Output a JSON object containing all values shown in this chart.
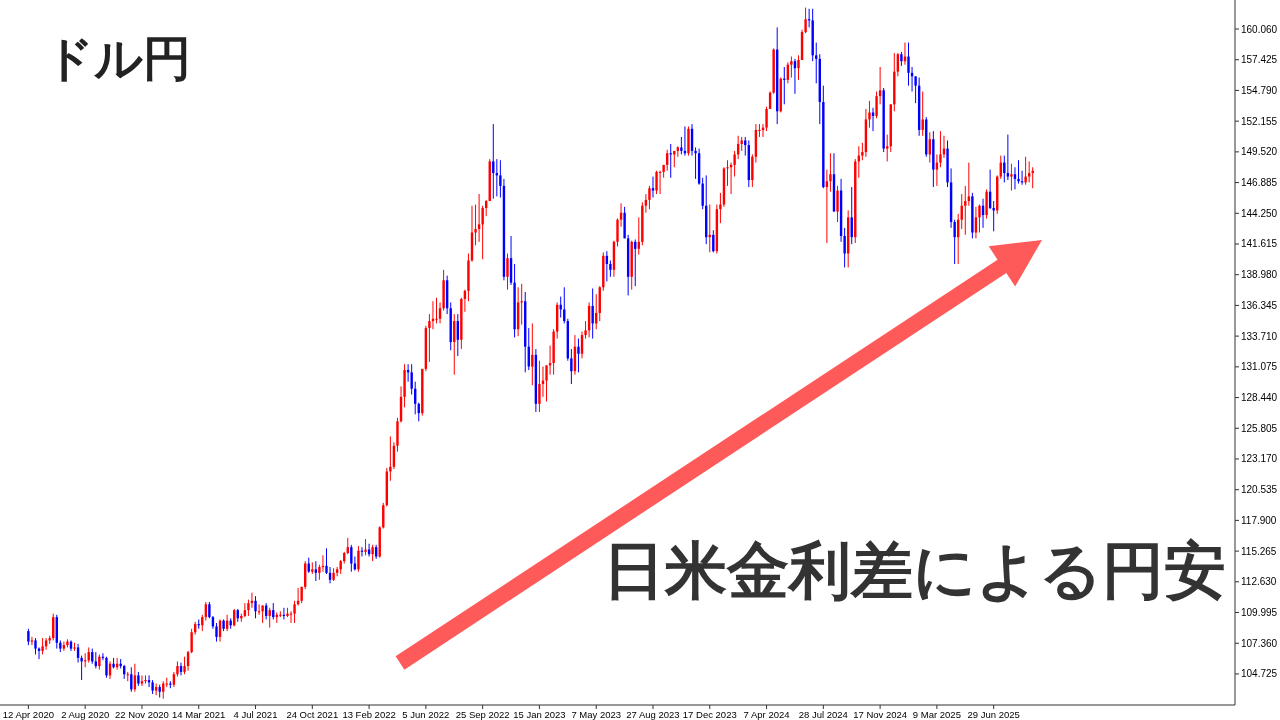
{
  "chart_data": {
    "type": "candlestick",
    "title": "ドル円",
    "annotations": [
      "日米金利差による円安"
    ],
    "colors": [
      "#0000ff",
      "#ff0000",
      "#0000ff",
      "#0000ff",
      "#ff0000",
      "#ff0000",
      "#ff0000",
      "#ff0000",
      "#0000ff",
      "#0000ff",
      "#ff0000",
      "#ff0000",
      "#0000ff",
      "#ff0000",
      "#0000ff",
      "#0000ff",
      "#ff0000",
      "#ff0000",
      "#0000ff",
      "#0000ff",
      "#ff0000",
      "#0000ff",
      "#0000ff",
      "#ff0000",
      "#0000ff",
      "#ff0000",
      "#0000ff",
      "#0000ff",
      "#ff0000",
      "#0000ff",
      "#ff0000",
      "#0000ff",
      "#ff0000",
      "#ff0000",
      "#0000ff",
      "#0000ff",
      "#ff0000",
      "#0000ff",
      "#ff0000",
      "#ff0000",
      "#0000ff",
      "#ff0000",
      "#ff0000",
      "#0000ff",
      "#ff0000",
      "#ff0000",
      "#ff0000",
      "#ff0000",
      "#0000ff",
      "#ff0000",
      "#ff0000",
      "#0000ff",
      "#0000ff",
      "#0000ff",
      "#ff0000",
      "#0000ff",
      "#ff0000",
      "#0000ff",
      "#ff0000",
      "#0000ff",
      "#ff0000",
      "#ff0000",
      "#ff0000",
      "#ff0000",
      "#0000ff",
      "#ff0000",
      "#ff0000",
      "#0000ff",
      "#ff0000",
      "#0000ff",
      "#ff0000",
      "#ff0000",
      "#0000ff",
      "#ff0000",
      "#ff0000",
      "#ff0000",
      "#ff0000",
      "#ff0000",
      "#ff0000",
      "#0000ff",
      "#ff0000",
      "#0000ff",
      "#ff0000",
      "#ff0000",
      "#0000ff",
      "#0000ff",
      "#ff0000",
      "#ff0000",
      "#ff0000",
      "#ff0000",
      "#ff0000",
      "#0000ff",
      "#0000ff",
      "#ff0000",
      "#0000ff",
      "#ff0000",
      "#0000ff",
      "#ff0000",
      "#0000ff",
      "#ff0000",
      "#ff0000",
      "#ff0000",
      "#ff0000",
      "#ff0000",
      "#ff0000",
      "#ff0000",
      "#ff0000",
      "#0000ff",
      "#0000ff",
      "#0000ff",
      "#0000ff",
      "#ff0000",
      "#ff0000",
      "#ff0000",
      "#ff0000",
      "#ff0000",
      "#ff0000",
      "#ff0000",
      "#0000ff",
      "#0000ff",
      "#ff0000",
      "#0000ff",
      "#ff0000",
      "#ff0000",
      "#ff0000",
      "#ff0000",
      "#ff0000",
      "#ff0000",
      "#ff0000",
      "#ff0000",
      "#ff0000",
      "#0000ff",
      "#0000ff",
      "#0000ff",
      "#0000ff",
      "#ff0000",
      "#0000ff",
      "#0000ff",
      "#ff0000",
      "#ff0000",
      "#0000ff",
      "#0000ff",
      "#ff0000",
      "#0000ff",
      "#ff0000",
      "#ff0000",
      "#ff0000",
      "#ff0000",
      "#ff0000",
      "#ff0000",
      "#0000ff",
      "#0000ff",
      "#0000ff",
      "#0000ff",
      "#ff0000",
      "#0000ff",
      "#ff0000",
      "#ff0000",
      "#ff0000",
      "#0000ff",
      "#ff0000",
      "#ff0000",
      "#ff0000",
      "#0000ff",
      "#0000ff",
      "#ff0000",
      "#ff0000",
      "#ff0000",
      "#0000ff",
      "#0000ff",
      "#ff0000",
      "#0000ff",
      "#ff0000",
      "#ff0000",
      "#ff0000",
      "#ff0000",
      "#0000ff",
      "#ff0000",
      "#ff0000",
      "#ff0000",
      "#ff0000",
      "#0000ff",
      "#ff0000",
      "#ff0000",
      "#0000ff",
      "#0000ff",
      "#ff0000",
      "#0000ff",
      "#0000ff",
      "#0000ff",
      "#0000ff",
      "#0000ff",
      "#ff0000",
      "#0000ff",
      "#ff0000",
      "#ff0000",
      "#ff0000",
      "#ff0000",
      "#ff0000",
      "#ff0000",
      "#ff0000",
      "#ff0000",
      "#0000ff",
      "#0000ff",
      "#ff0000",
      "#ff0000",
      "#ff0000",
      "#ff0000",
      "#ff0000",
      "#ff0000",
      "#ff0000",
      "#0000ff",
      "#ff0000",
      "#0000ff",
      "#ff0000",
      "#ff0000",
      "#0000ff",
      "#ff0000",
      "#ff0000",
      "#ff0000",
      "#0000ff",
      "#0000ff",
      "#0000ff",
      "#0000ff",
      "#0000ff",
      "#ff0000",
      "#ff0000",
      "#0000ff",
      "#ff0000",
      "#0000ff",
      "#0000ff",
      "#ff0000",
      "#0000ff",
      "#ff0000",
      "#ff0000",
      "#ff0000",
      "#ff0000",
      "#ff0000",
      "#0000ff",
      "#ff0000",
      "#ff0000",
      "#0000ff",
      "#ff0000",
      "#ff0000",
      "#ff0000",
      "#ff0000",
      "#0000ff",
      "#ff0000",
      "#0000ff",
      "#0000ff",
      "#0000ff",
      "#0000ff",
      "#ff0000",
      "#0000ff",
      "#ff0000",
      "#0000ff",
      "#ff0000",
      "#ff0000",
      "#ff0000",
      "#0000ff",
      "#0000ff",
      "#0000ff",
      "#ff0000",
      "#ff0000",
      "#ff0000",
      "#ff0000",
      "#0000ff",
      "#ff0000",
      "#ff0000",
      "#0000ff",
      "#ff0000",
      "#0000ff",
      "#0000ff",
      "#ff0000",
      "#ff0000",
      "#0000ff",
      "#0000ff",
      "#ff0000",
      "#0000ff",
      "#0000ff",
      "#0000ff",
      "#ff0000",
      "#ff0000",
      "#ff0000"
    ],
    "xlim": [
      "2020-02-16",
      "2026-10-18"
    ],
    "ylim": [
      102.06,
      162.55
    ],
    "xticks": [
      {
        "value": "2020-04-12",
        "label": "12 Apr 2020"
      },
      {
        "value": "2020-08-02",
        "label": "2 Aug 2020"
      },
      {
        "value": "2020-11-22",
        "label": "22 Nov 2020"
      },
      {
        "value": "2021-03-14",
        "label": "14 Mar 2021"
      },
      {
        "value": "2021-07-04",
        "label": "4 Jul 2021"
      },
      {
        "value": "2021-10-24",
        "label": "24 Oct 2021"
      },
      {
        "value": "2022-02-13",
        "label": "13 Feb 2022"
      },
      {
        "value": "2022-06-05",
        "label": "5 Jun 2022"
      },
      {
        "value": "2022-09-25",
        "label": "25 Sep 2022"
      },
      {
        "value": "2023-01-15",
        "label": "15 Jan 2023"
      },
      {
        "value": "2023-05-07",
        "label": "7 May 2023"
      },
      {
        "value": "2023-08-27",
        "label": "27 Aug 2023"
      },
      {
        "value": "2023-12-17",
        "label": "17 Dec 2023"
      },
      {
        "value": "2024-04-07",
        "label": "7 Apr 2024"
      },
      {
        "value": "2024-07-28",
        "label": "28 Jul 2024"
      },
      {
        "value": "2024-11-17",
        "label": "17 Nov 2024"
      },
      {
        "value": "2025-03-09",
        "label": "9 Mar 2025"
      },
      {
        "value": "2025-06-29",
        "label": "29 Jun 2025"
      }
    ],
    "yticks": [
      {
        "value": 104.725,
        "label": "104.725"
      },
      {
        "value": 107.36,
        "label": "107.360"
      },
      {
        "value": 109.995,
        "label": "109.995"
      },
      {
        "value": 112.63,
        "label": "112.630"
      },
      {
        "value": 115.265,
        "label": "115.265"
      },
      {
        "value": 117.9,
        "label": "117.900"
      },
      {
        "value": 120.535,
        "label": "120.535"
      },
      {
        "value": 123.17,
        "label": "123.170"
      },
      {
        "value": 125.805,
        "label": "125.805"
      },
      {
        "value": 128.44,
        "label": "128.440"
      },
      {
        "value": 131.075,
        "label": "131.075"
      },
      {
        "value": 133.71,
        "label": "133.710"
      },
      {
        "value": 136.345,
        "label": "136.345"
      },
      {
        "value": 138.98,
        "label": "138.980"
      },
      {
        "value": 141.615,
        "label": "141.615"
      },
      {
        "value": 144.25,
        "label": "144.250"
      },
      {
        "value": 146.885,
        "label": "146.885"
      },
      {
        "value": 149.52,
        "label": "149.520"
      },
      {
        "value": 152.155,
        "label": "152.155"
      },
      {
        "value": 154.79,
        "label": "154.790"
      },
      {
        "value": 157.425,
        "label": "157.425"
      },
      {
        "value": 160.06,
        "label": "160.060"
      }
    ],
    "x": [
      "2020-04-12",
      "2020-04-19",
      "2020-04-26",
      "2020-05-03",
      "2020-05-10",
      "2020-05-17",
      "2020-05-24",
      "2020-05-31",
      "2020-06-07",
      "2020-06-14",
      "2020-06-21",
      "2020-06-28",
      "2020-07-05",
      "2020-07-12",
      "2020-07-19",
      "2020-07-26",
      "2020-08-02",
      "2020-08-09",
      "2020-08-16",
      "2020-08-23",
      "2020-08-30",
      "2020-09-06",
      "2020-09-13",
      "2020-09-20",
      "2020-09-27",
      "2020-10-04",
      "2020-10-11",
      "2020-10-18",
      "2020-10-25",
      "2020-11-01",
      "2020-11-08",
      "2020-11-15",
      "2020-11-22",
      "2020-11-29",
      "2020-12-06",
      "2020-12-13",
      "2020-12-20",
      "2020-12-27",
      "2021-01-03",
      "2021-01-10",
      "2021-01-17",
      "2021-01-24",
      "2021-01-31",
      "2021-02-07",
      "2021-02-14",
      "2021-02-21",
      "2021-02-28",
      "2021-03-07",
      "2021-03-14",
      "2021-03-21",
      "2021-03-28",
      "2021-04-04",
      "2021-04-11",
      "2021-04-18",
      "2021-04-25",
      "2021-05-02",
      "2021-05-09",
      "2021-05-16",
      "2021-05-23",
      "2021-05-30",
      "2021-06-06",
      "2021-06-13",
      "2021-06-20",
      "2021-06-27",
      "2021-07-04",
      "2021-07-11",
      "2021-07-18",
      "2021-07-25",
      "2021-08-01",
      "2021-08-08",
      "2021-08-15",
      "2021-08-22",
      "2021-08-29",
      "2021-09-05",
      "2021-09-12",
      "2021-09-19",
      "2021-09-26",
      "2021-10-03",
      "2021-10-10",
      "2021-10-17",
      "2021-10-24",
      "2021-10-31",
      "2021-11-07",
      "2021-11-14",
      "2021-11-21",
      "2021-11-28",
      "2021-12-05",
      "2021-12-12",
      "2021-12-19",
      "2021-12-26",
      "2022-01-02",
      "2022-01-09",
      "2022-01-16",
      "2022-01-23",
      "2022-01-30",
      "2022-02-06",
      "2022-02-13",
      "2022-02-20",
      "2022-02-27",
      "2022-03-06",
      "2022-03-13",
      "2022-03-20",
      "2022-03-27",
      "2022-04-03",
      "2022-04-10",
      "2022-04-17",
      "2022-04-24",
      "2022-05-01",
      "2022-05-08",
      "2022-05-15",
      "2022-05-22",
      "2022-05-29",
      "2022-06-05",
      "2022-06-12",
      "2022-06-19",
      "2022-06-26",
      "2022-07-03",
      "2022-07-10",
      "2022-07-17",
      "2022-07-24",
      "2022-07-31",
      "2022-08-07",
      "2022-08-14",
      "2022-08-21",
      "2022-08-28",
      "2022-09-04",
      "2022-09-11",
      "2022-09-18",
      "2022-09-25",
      "2022-10-02",
      "2022-10-09",
      "2022-10-16",
      "2022-10-23",
      "2022-10-30",
      "2022-11-06",
      "2022-11-13",
      "2022-11-20",
      "2022-11-27",
      "2022-12-04",
      "2022-12-11",
      "2022-12-18",
      "2022-12-25",
      "2023-01-01",
      "2023-01-08",
      "2023-01-15",
      "2023-01-22",
      "2023-01-29",
      "2023-02-05",
      "2023-02-12",
      "2023-02-19",
      "2023-02-26",
      "2023-03-05",
      "2023-03-12",
      "2023-03-19",
      "2023-03-26",
      "2023-04-02",
      "2023-04-09",
      "2023-04-16",
      "2023-04-23",
      "2023-04-30",
      "2023-05-07",
      "2023-05-14",
      "2023-05-21",
      "2023-05-28",
      "2023-06-04",
      "2023-06-11",
      "2023-06-18",
      "2023-06-25",
      "2023-07-02",
      "2023-07-09",
      "2023-07-16",
      "2023-07-23",
      "2023-07-30",
      "2023-08-06",
      "2023-08-13",
      "2023-08-20",
      "2023-08-27",
      "2023-09-03",
      "2023-09-10",
      "2023-09-17",
      "2023-09-24",
      "2023-10-01",
      "2023-10-08",
      "2023-10-15",
      "2023-10-22",
      "2023-10-29",
      "2023-11-05",
      "2023-11-12",
      "2023-11-19",
      "2023-11-26",
      "2023-12-03",
      "2023-12-10",
      "2023-12-17",
      "2023-12-24",
      "2023-12-31",
      "2024-01-07",
      "2024-01-14",
      "2024-01-21",
      "2024-01-28",
      "2024-02-04",
      "2024-02-11",
      "2024-02-18",
      "2024-02-25",
      "2024-03-03",
      "2024-03-10",
      "2024-03-17",
      "2024-03-24",
      "2024-03-31",
      "2024-04-07",
      "2024-04-14",
      "2024-04-21",
      "2024-04-28",
      "2024-05-05",
      "2024-05-12",
      "2024-05-19",
      "2024-05-26",
      "2024-06-02",
      "2024-06-09",
      "2024-06-16",
      "2024-06-23",
      "2024-06-30",
      "2024-07-07",
      "2024-07-14",
      "2024-07-21",
      "2024-07-28",
      "2024-08-04",
      "2024-08-11",
      "2024-08-18",
      "2024-08-25",
      "2024-09-01",
      "2024-09-08",
      "2024-09-15",
      "2024-09-22",
      "2024-09-29",
      "2024-10-06",
      "2024-10-13",
      "2024-10-20",
      "2024-10-27",
      "2024-11-03",
      "2024-11-10",
      "2024-11-17",
      "2024-11-24",
      "2024-12-01",
      "2024-12-08",
      "2024-12-15",
      "2024-12-22",
      "2024-12-29",
      "2025-01-05",
      "2025-01-12",
      "2025-01-19",
      "2025-01-26",
      "2025-02-02",
      "2025-02-09",
      "2025-02-16",
      "2025-02-23",
      "2025-03-02",
      "2025-03-09",
      "2025-03-16",
      "2025-03-23",
      "2025-03-30",
      "2025-04-06",
      "2025-04-13",
      "2025-04-20",
      "2025-04-27",
      "2025-05-04",
      "2025-05-11",
      "2025-05-18",
      "2025-05-25",
      "2025-06-01",
      "2025-06-08",
      "2025-06-15",
      "2025-06-22",
      "2025-06-29",
      "2025-07-06",
      "2025-07-13",
      "2025-07-20",
      "2025-07-27",
      "2025-08-03",
      "2025-08-10",
      "2025-08-17",
      "2025-08-24",
      "2025-08-31",
      "2025-09-07",
      "2025-09-14"
    ],
    "ohlc": [
      [
        108.4,
        108.6,
        107.2,
        107.5
      ],
      [
        107.5,
        107.9,
        107.2,
        107.6
      ],
      [
        107.6,
        107.8,
        106.4,
        106.9
      ],
      [
        106.9,
        107.0,
        106.0,
        106.7
      ],
      [
        106.7,
        107.8,
        106.4,
        107.1
      ],
      [
        107.1,
        107.8,
        106.8,
        107.6
      ],
      [
        107.6,
        108.0,
        107.3,
        107.8
      ],
      [
        107.8,
        109.9,
        107.6,
        109.6
      ],
      [
        109.6,
        109.8,
        106.9,
        107.4
      ],
      [
        107.4,
        107.6,
        106.6,
        106.9
      ],
      [
        106.9,
        107.5,
        106.7,
        107.2
      ],
      [
        107.2,
        107.7,
        107.0,
        107.5
      ],
      [
        107.5,
        107.6,
        106.7,
        106.9
      ],
      [
        106.9,
        107.4,
        106.7,
        107.0
      ],
      [
        107.0,
        107.3,
        105.7,
        106.1
      ],
      [
        106.1,
        106.3,
        104.2,
        105.8
      ],
      [
        105.8,
        106.5,
        105.3,
        105.9
      ],
      [
        105.9,
        107.0,
        105.7,
        106.6
      ],
      [
        106.6,
        106.9,
        105.6,
        105.8
      ],
      [
        105.8,
        106.6,
        105.2,
        105.4
      ],
      [
        105.4,
        106.4,
        105.1,
        106.2
      ],
      [
        106.2,
        106.5,
        105.9,
        106.1
      ],
      [
        106.1,
        106.2,
        104.4,
        104.6
      ],
      [
        104.6,
        105.8,
        104.3,
        105.6
      ],
      [
        105.6,
        106.1,
        105.2,
        105.3
      ],
      [
        105.3,
        106.1,
        105.1,
        105.6
      ],
      [
        105.6,
        106.0,
        105.2,
        105.4
      ],
      [
        105.4,
        105.5,
        104.3,
        104.7
      ],
      [
        104.7,
        104.9,
        104.1,
        104.7
      ],
      [
        104.7,
        105.3,
        103.2,
        103.4
      ],
      [
        103.4,
        105.6,
        103.2,
        104.6
      ],
      [
        104.6,
        104.9,
        103.7,
        103.9
      ],
      [
        103.9,
        104.6,
        103.7,
        104.1
      ],
      [
        104.1,
        104.6,
        103.9,
        104.2
      ],
      [
        104.2,
        104.6,
        103.6,
        104.0
      ],
      [
        104.0,
        104.2,
        103.0,
        103.3
      ],
      [
        103.3,
        103.9,
        102.9,
        103.6
      ],
      [
        103.6,
        103.8,
        102.7,
        103.2
      ],
      [
        103.2,
        104.1,
        102.6,
        103.9
      ],
      [
        103.9,
        104.4,
        103.6,
        103.9
      ],
      [
        103.9,
        104.1,
        103.5,
        103.8
      ],
      [
        103.8,
        104.9,
        103.6,
        104.7
      ],
      [
        104.7,
        105.8,
        104.5,
        105.4
      ],
      [
        105.4,
        105.7,
        104.6,
        104.9
      ],
      [
        104.9,
        106.2,
        104.7,
        105.4
      ],
      [
        105.4,
        106.7,
        105.0,
        106.6
      ],
      [
        106.6,
        108.6,
        106.5,
        108.3
      ],
      [
        108.3,
        109.2,
        108.1,
        109.0
      ],
      [
        109.0,
        109.4,
        108.6,
        108.9
      ],
      [
        108.9,
        109.8,
        108.4,
        109.6
      ],
      [
        109.6,
        110.9,
        109.3,
        110.7
      ],
      [
        110.7,
        110.9,
        109.5,
        109.6
      ],
      [
        109.6,
        109.7,
        108.6,
        108.8
      ],
      [
        108.8,
        109.1,
        107.5,
        107.9
      ],
      [
        107.9,
        109.4,
        107.5,
        109.3
      ],
      [
        109.3,
        109.4,
        108.4,
        108.6
      ],
      [
        108.6,
        109.8,
        108.4,
        109.3
      ],
      [
        109.3,
        109.5,
        108.6,
        108.9
      ],
      [
        108.9,
        110.3,
        108.8,
        110.2
      ],
      [
        110.2,
        110.3,
        109.2,
        109.5
      ],
      [
        109.5,
        109.9,
        109.2,
        109.7
      ],
      [
        109.7,
        110.8,
        109.6,
        110.2
      ],
      [
        110.2,
        111.1,
        109.7,
        110.8
      ],
      [
        110.8,
        111.7,
        110.4,
        111.0
      ],
      [
        111.0,
        111.4,
        109.5,
        110.1
      ],
      [
        110.1,
        110.7,
        109.8,
        110.1
      ],
      [
        110.1,
        110.6,
        109.1,
        110.6
      ],
      [
        110.6,
        110.8,
        109.4,
        109.7
      ],
      [
        109.7,
        110.4,
        108.7,
        110.2
      ],
      [
        110.2,
        110.8,
        109.4,
        109.6
      ],
      [
        109.6,
        110.0,
        109.1,
        109.8
      ],
      [
        109.8,
        110.1,
        109.6,
        109.8
      ],
      [
        109.8,
        110.4,
        109.4,
        109.7
      ],
      [
        109.7,
        110.4,
        109.6,
        109.9
      ],
      [
        109.9,
        110.1,
        109.1,
        109.9
      ],
      [
        109.9,
        111.0,
        109.1,
        110.7
      ],
      [
        110.7,
        112.1,
        110.6,
        111.0
      ],
      [
        111.0,
        112.2,
        110.8,
        112.2
      ],
      [
        112.2,
        114.4,
        112.0,
        114.2
      ],
      [
        114.2,
        114.7,
        113.4,
        113.5
      ],
      [
        113.5,
        114.3,
        113.3,
        113.7
      ],
      [
        113.7,
        114.4,
        112.7,
        113.4
      ],
      [
        113.4,
        114.1,
        112.8,
        113.9
      ],
      [
        113.9,
        114.9,
        113.5,
        114.0
      ],
      [
        114.0,
        115.5,
        113.3,
        113.4
      ],
      [
        113.4,
        113.9,
        112.5,
        112.8
      ],
      [
        112.8,
        113.8,
        112.7,
        113.4
      ],
      [
        113.4,
        113.9,
        113.1,
        113.7
      ],
      [
        113.7,
        114.5,
        113.3,
        114.4
      ],
      [
        114.4,
        115.2,
        114.2,
        115.1
      ],
      [
        115.1,
        116.4,
        115.0,
        115.6
      ],
      [
        115.6,
        115.8,
        113.5,
        114.2
      ],
      [
        114.2,
        114.8,
        113.6,
        113.7
      ],
      [
        113.7,
        115.7,
        113.5,
        115.3
      ],
      [
        115.3,
        115.6,
        114.8,
        115.2
      ],
      [
        115.2,
        116.3,
        114.9,
        115.4
      ],
      [
        115.4,
        115.9,
        114.8,
        115.0
      ],
      [
        115.0,
        115.8,
        114.4,
        115.6
      ],
      [
        115.6,
        115.8,
        114.6,
        114.8
      ],
      [
        114.8,
        117.4,
        114.7,
        117.3
      ],
      [
        117.3,
        119.4,
        117.2,
        119.2
      ],
      [
        119.2,
        122.4,
        119.1,
        122.1
      ],
      [
        122.1,
        125.1,
        121.3,
        122.5
      ],
      [
        122.5,
        124.6,
        122.3,
        124.3
      ],
      [
        124.3,
        126.7,
        123.8,
        126.4
      ],
      [
        126.4,
        129.4,
        126.3,
        128.5
      ],
      [
        128.5,
        131.3,
        127.6,
        130.8
      ],
      [
        130.8,
        131.3,
        129.8,
        130.6
      ],
      [
        130.6,
        131.3,
        128.7,
        129.2
      ],
      [
        129.2,
        129.8,
        127.0,
        127.9
      ],
      [
        127.9,
        128.0,
        126.4,
        127.1
      ],
      [
        127.1,
        130.9,
        126.9,
        130.9
      ],
      [
        130.9,
        134.6,
        130.7,
        134.4
      ],
      [
        134.4,
        135.6,
        131.5,
        135.0
      ],
      [
        135.0,
        136.7,
        134.3,
        135.2
      ],
      [
        135.2,
        137.0,
        134.8,
        135.2
      ],
      [
        135.2,
        136.6,
        134.8,
        136.1
      ],
      [
        136.1,
        139.4,
        135.9,
        138.5
      ],
      [
        138.5,
        138.9,
        135.6,
        136.1
      ],
      [
        136.1,
        136.6,
        132.5,
        133.2
      ],
      [
        133.2,
        135.6,
        130.4,
        135.0
      ],
      [
        135.0,
        135.6,
        132.0,
        133.4
      ],
      [
        133.4,
        137.0,
        132.6,
        136.9
      ],
      [
        136.9,
        137.7,
        135.8,
        137.6
      ],
      [
        137.6,
        140.8,
        136.7,
        140.2
      ],
      [
        140.2,
        144.9,
        140.1,
        142.6
      ],
      [
        142.6,
        145.0,
        141.5,
        142.9
      ],
      [
        142.9,
        145.9,
        141.8,
        143.3
      ],
      [
        143.3,
        144.9,
        140.3,
        144.7
      ],
      [
        144.7,
        145.4,
        144.0,
        145.3
      ],
      [
        145.3,
        148.9,
        145.3,
        148.7
      ],
      [
        148.7,
        151.9,
        145.5,
        147.7
      ],
      [
        147.7,
        148.9,
        145.7,
        147.5
      ],
      [
        147.5,
        148.8,
        145.6,
        146.6
      ],
      [
        146.6,
        147.2,
        138.5,
        138.8
      ],
      [
        138.8,
        140.8,
        137.7,
        140.4
      ],
      [
        140.4,
        142.3,
        138.1,
        138.3
      ],
      [
        138.3,
        139.9,
        133.6,
        134.3
      ],
      [
        134.3,
        137.9,
        133.7,
        136.6
      ],
      [
        136.6,
        138.2,
        134.7,
        136.7
      ],
      [
        136.7,
        137.5,
        130.6,
        132.8
      ],
      [
        132.8,
        134.4,
        130.8,
        131.1
      ],
      [
        131.1,
        134.8,
        129.5,
        132.1
      ],
      [
        132.1,
        132.6,
        127.2,
        127.9
      ],
      [
        127.9,
        131.6,
        127.2,
        129.6
      ],
      [
        129.6,
        131.1,
        128.5,
        129.9
      ],
      [
        129.9,
        131.2,
        128.1,
        131.2
      ],
      [
        131.2,
        132.9,
        130.4,
        131.4
      ],
      [
        131.4,
        134.3,
        130.4,
        134.1
      ],
      [
        134.1,
        136.6,
        133.5,
        136.4
      ],
      [
        136.4,
        137.1,
        135.3,
        136.0
      ],
      [
        136.0,
        137.9,
        134.8,
        135.0
      ],
      [
        135.0,
        135.2,
        131.6,
        131.8
      ],
      [
        131.8,
        132.6,
        129.6,
        130.7
      ],
      [
        130.7,
        133.8,
        130.4,
        132.8
      ],
      [
        132.8,
        133.5,
        130.6,
        132.2
      ],
      [
        132.2,
        134.1,
        131.8,
        133.8
      ],
      [
        133.8,
        135.0,
        133.5,
        134.2
      ],
      [
        134.2,
        136.6,
        133.6,
        136.3
      ],
      [
        136.3,
        137.8,
        133.5,
        134.8
      ],
      [
        134.8,
        137.3,
        134.3,
        135.7
      ],
      [
        135.7,
        138.0,
        135.0,
        137.9
      ],
      [
        137.9,
        140.9,
        137.6,
        140.6
      ],
      [
        140.6,
        141.0,
        138.4,
        139.9
      ],
      [
        139.9,
        140.2,
        138.8,
        139.4
      ],
      [
        139.4,
        141.9,
        138.8,
        141.8
      ],
      [
        141.8,
        143.8,
        141.4,
        143.7
      ],
      [
        143.7,
        145.1,
        143.1,
        144.3
      ],
      [
        144.3,
        144.8,
        142.1,
        142.1
      ],
      [
        142.1,
        142.4,
        137.2,
        138.8
      ],
      [
        138.8,
        141.9,
        137.7,
        141.8
      ],
      [
        141.8,
        142.0,
        138.0,
        141.2
      ],
      [
        141.2,
        143.9,
        140.7,
        141.8
      ],
      [
        141.8,
        145.2,
        141.5,
        144.9
      ],
      [
        144.9,
        145.9,
        144.3,
        145.4
      ],
      [
        145.4,
        146.6,
        144.6,
        146.4
      ],
      [
        146.4,
        147.4,
        145.6,
        146.2
      ],
      [
        146.2,
        147.9,
        145.9,
        147.8
      ],
      [
        147.8,
        147.9,
        145.9,
        147.8
      ],
      [
        147.8,
        148.4,
        147.3,
        148.4
      ],
      [
        148.4,
        149.7,
        147.9,
        149.4
      ],
      [
        149.4,
        150.2,
        147.3,
        149.3
      ],
      [
        149.3,
        149.6,
        148.2,
        149.6
      ],
      [
        149.6,
        150.0,
        149.1,
        149.9
      ],
      [
        149.9,
        150.8,
        149.3,
        149.6
      ],
      [
        149.6,
        151.7,
        149.2,
        149.4
      ],
      [
        149.4,
        151.7,
        149.2,
        151.5
      ],
      [
        151.5,
        151.9,
        149.2,
        149.6
      ],
      [
        149.6,
        149.9,
        147.2,
        149.4
      ],
      [
        149.4,
        149.8,
        146.7,
        146.8
      ],
      [
        146.8,
        147.3,
        144.6,
        144.9
      ],
      [
        144.9,
        147.5,
        141.6,
        142.2
      ],
      [
        142.2,
        145.0,
        140.9,
        142.4
      ],
      [
        142.4,
        142.8,
        140.9,
        141.0
      ],
      [
        141.0,
        145.0,
        140.8,
        144.6
      ],
      [
        144.6,
        146.0,
        143.4,
        145.0
      ],
      [
        145.0,
        148.2,
        144.8,
        148.1
      ],
      [
        148.1,
        148.8,
        146.6,
        148.2
      ],
      [
        148.2,
        148.6,
        145.9,
        148.4
      ],
      [
        148.4,
        149.6,
        147.4,
        149.3
      ],
      [
        149.3,
        150.9,
        148.9,
        150.2
      ],
      [
        150.2,
        150.8,
        149.6,
        150.5
      ],
      [
        150.5,
        150.8,
        149.2,
        150.1
      ],
      [
        150.1,
        150.5,
        146.5,
        147.1
      ],
      [
        147.1,
        149.3,
        146.5,
        149.1
      ],
      [
        149.1,
        151.9,
        148.6,
        151.4
      ],
      [
        151.4,
        151.9,
        150.8,
        151.4
      ],
      [
        151.4,
        151.9,
        150.8,
        151.6
      ],
      [
        151.6,
        153.4,
        151.3,
        153.2
      ],
      [
        153.2,
        154.7,
        153.2,
        154.6
      ],
      [
        154.6,
        158.4,
        154.5,
        158.3
      ],
      [
        158.3,
        160.2,
        151.9,
        153.0
      ],
      [
        153.0,
        155.9,
        152.9,
        155.8
      ],
      [
        155.8,
        156.8,
        153.6,
        155.7
      ],
      [
        155.7,
        157.2,
        155.4,
        157.0
      ],
      [
        157.0,
        157.7,
        155.9,
        157.3
      ],
      [
        157.3,
        157.5,
        154.5,
        156.7
      ],
      [
        156.7,
        157.8,
        155.7,
        157.4
      ],
      [
        157.4,
        160.0,
        157.4,
        159.8
      ],
      [
        159.8,
        161.9,
        159.7,
        160.9
      ],
      [
        160.9,
        161.8,
        160.2,
        160.8
      ],
      [
        160.8,
        161.8,
        157.3,
        157.8
      ],
      [
        157.8,
        158.9,
        155.4,
        157.5
      ],
      [
        157.5,
        157.9,
        151.9,
        153.8
      ],
      [
        153.8,
        155.2,
        146.4,
        146.5
      ],
      [
        146.5,
        148.0,
        141.7,
        147.0
      ],
      [
        147.0,
        149.4,
        146.1,
        147.6
      ],
      [
        147.6,
        149.4,
        144.4,
        144.4
      ],
      [
        144.4,
        146.6,
        143.5,
        146.2
      ],
      [
        146.2,
        147.2,
        141.8,
        142.3
      ],
      [
        142.3,
        143.0,
        139.6,
        140.8
      ],
      [
        140.8,
        144.5,
        139.6,
        143.9
      ],
      [
        143.9,
        146.5,
        141.6,
        142.2
      ],
      [
        142.2,
        148.9,
        141.7,
        148.7
      ],
      [
        148.7,
        150.0,
        147.3,
        149.2
      ],
      [
        149.2,
        150.3,
        148.8,
        149.5
      ],
      [
        149.5,
        153.2,
        149.1,
        152.3
      ],
      [
        152.3,
        153.9,
        151.6,
        152.9
      ],
      [
        152.9,
        153.3,
        151.3,
        152.6
      ],
      [
        152.6,
        154.7,
        152.4,
        154.3
      ],
      [
        154.3,
        156.8,
        153.6,
        154.8
      ],
      [
        154.8,
        155.0,
        149.5,
        149.8
      ],
      [
        149.8,
        151.0,
        148.7,
        150.0
      ],
      [
        150.0,
        153.6,
        149.5,
        153.6
      ],
      [
        153.6,
        158.0,
        153.0,
        156.4
      ],
      [
        156.4,
        158.0,
        156.0,
        157.9
      ],
      [
        157.9,
        158.1,
        156.9,
        157.3
      ],
      [
        157.3,
        158.9,
        157.0,
        157.7
      ],
      [
        157.7,
        158.9,
        155.2,
        156.3
      ],
      [
        156.3,
        156.8,
        154.7,
        156.0
      ],
      [
        156.0,
        156.0,
        153.7,
        155.2
      ],
      [
        155.2,
        155.9,
        150.9,
        151.4
      ],
      [
        151.4,
        154.7,
        150.9,
        152.3
      ],
      [
        152.3,
        152.5,
        149.1,
        149.3
      ],
      [
        149.3,
        151.2,
        148.6,
        150.6
      ],
      [
        150.6,
        151.3,
        146.5,
        148.0
      ],
      [
        148.0,
        149.3,
        146.6,
        148.6
      ],
      [
        148.6,
        151.3,
        148.2,
        149.3
      ],
      [
        149.3,
        150.9,
        149.0,
        149.8
      ],
      [
        149.8,
        150.5,
        146.5,
        146.9
      ],
      [
        146.9,
        148.1,
        143.0,
        143.5
      ],
      [
        143.5,
        143.7,
        139.9,
        142.2
      ],
      [
        142.2,
        144.2,
        139.9,
        143.7
      ],
      [
        143.7,
        145.9,
        142.9,
        144.9
      ],
      [
        144.9,
        146.6,
        142.4,
        145.3
      ],
      [
        145.3,
        148.6,
        144.9,
        145.7
      ],
      [
        145.7,
        146.0,
        142.1,
        142.6
      ],
      [
        142.6,
        144.8,
        142.1,
        143.9
      ],
      [
        143.9,
        145.0,
        142.6,
        144.9
      ],
      [
        144.9,
        145.5,
        143.0,
        144.1
      ],
      [
        144.1,
        146.3,
        143.8,
        146.1
      ],
      [
        146.1,
        148.0,
        144.6,
        144.7
      ],
      [
        144.7,
        145.3,
        142.7,
        144.5
      ],
      [
        144.5,
        147.5,
        144.2,
        147.4
      ],
      [
        147.4,
        149.2,
        147.2,
        148.6
      ],
      [
        148.6,
        149.2,
        146.9,
        147.7
      ],
      [
        147.7,
        151.0,
        147.1,
        147.4
      ],
      [
        147.4,
        148.5,
        146.2,
        147.6
      ],
      [
        147.6,
        148.2,
        146.3,
        147.2
      ],
      [
        147.2,
        148.8,
        146.8,
        147.0
      ],
      [
        147.0,
        147.9,
        146.7,
        146.9
      ],
      [
        146.9,
        149.1,
        146.7,
        147.4
      ],
      [
        147.4,
        148.7,
        146.9,
        147.7
      ],
      [
        147.7,
        148.2,
        146.4,
        147.9
      ]
    ]
  }
}
